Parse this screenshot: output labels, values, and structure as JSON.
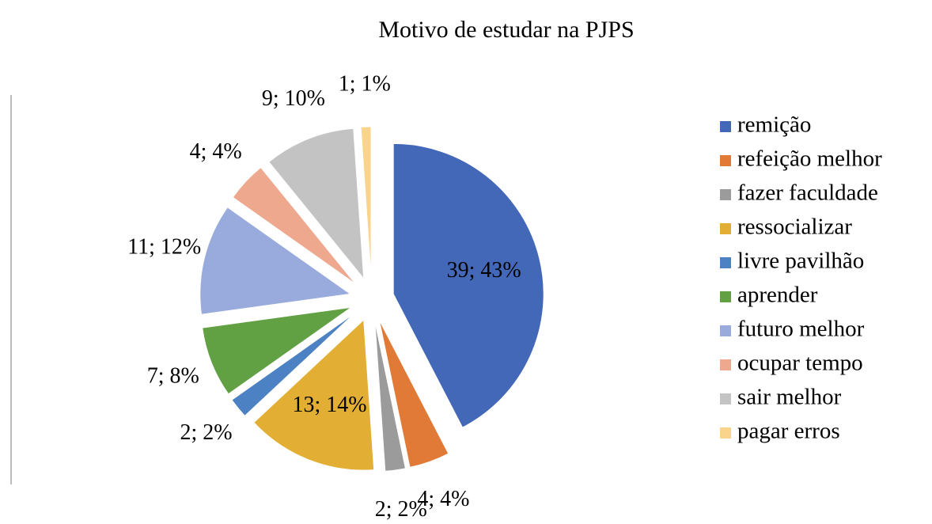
{
  "chart_data": {
    "type": "pie",
    "title": "Motivo de estudar na PJPS",
    "categories": [
      "remição",
      "refeição melhor",
      "fazer faculdade",
      "ressocializar",
      "livre pavilhão",
      "aprender",
      "futuro melhor",
      "ocupar tempo",
      "sair melhor",
      "pagar erros"
    ],
    "values": [
      39,
      4,
      2,
      13,
      2,
      7,
      11,
      4,
      9,
      1
    ],
    "value_labels": [
      "39; 43%",
      "4; 4%",
      "2; 2%",
      "13; 14%",
      "2; 2%",
      "7; 8%",
      "11; 12%",
      "4; 4%",
      "9; 10%",
      "1; 1%"
    ],
    "colors": [
      "#4368b8",
      "#e07a36",
      "#9b9b9b",
      "#e2ae33",
      "#4c82c3",
      "#62a044",
      "#98abdc",
      "#eea88e",
      "#c3c3c3",
      "#f9d48a"
    ],
    "legend": "right"
  }
}
